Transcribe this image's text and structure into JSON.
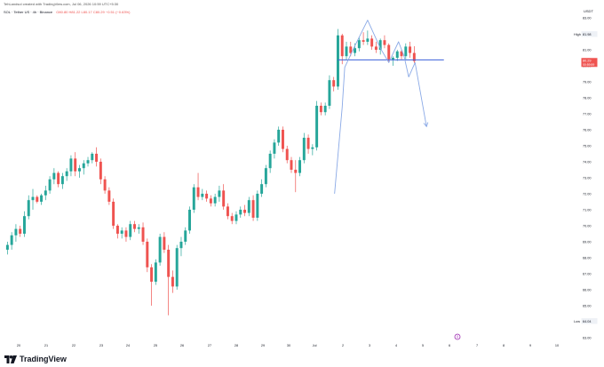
{
  "header": {
    "published_line": "TehLandsol created with TradingView.com, Jul 06, 2026 10:59 UTC+5:30",
    "symbol_line": "SOL · Tether US · 4h · Binance",
    "ohlc_line": "O80.80 H81.22 L80.17 C80.29 −0.51 (−0.63%)",
    "currency": "USDT"
  },
  "footer": {
    "brand": "TradingView"
  },
  "colors": {
    "up": "#26a69a",
    "down": "#ef5350",
    "pattern": "#8aa9e6",
    "neckline": "#3a5fd9",
    "axis_text": "#131722",
    "price_tag": "#ef5350"
  },
  "chart_data": {
    "type": "candlestick",
    "title": "",
    "xlabel": "",
    "ylabel": "",
    "ylim": [
      63,
      83
    ],
    "y_ticks": [
      "83.00",
      "82.00",
      "81.00",
      "80.00",
      "79.00",
      "78.00",
      "77.00",
      "76.00",
      "75.00",
      "74.00",
      "73.00",
      "72.00",
      "71.00",
      "70.00",
      "69.00",
      "68.00",
      "67.00",
      "66.00",
      "65.00",
      "64.00",
      "63.00"
    ],
    "x_ticks": [
      "20",
      "21",
      "22",
      "23",
      "24",
      "25",
      "26",
      "27",
      "28",
      "29",
      "30",
      "Jul",
      "2",
      "3",
      "4",
      "5",
      "6",
      "7",
      "8",
      "9",
      "10"
    ],
    "high_label": {
      "label": "High",
      "value": "81.98"
    },
    "low_label": {
      "label": "Low",
      "value": "64.04"
    },
    "last_price": {
      "value": "80.29",
      "countdown": "00:59:59"
    },
    "candles": [
      [
        68.5,
        69.0,
        68.2,
        68.8
      ],
      [
        68.8,
        69.6,
        68.5,
        69.4
      ],
      [
        69.4,
        70.1,
        69.0,
        69.8
      ],
      [
        69.8,
        70.0,
        69.3,
        69.5
      ],
      [
        69.5,
        70.9,
        69.3,
        70.6
      ],
      [
        70.6,
        71.9,
        70.4,
        71.6
      ],
      [
        71.6,
        72.3,
        71.0,
        71.8
      ],
      [
        71.8,
        71.9,
        71.4,
        71.5
      ],
      [
        71.5,
        72.0,
        71.3,
        71.9
      ],
      [
        71.9,
        72.5,
        71.6,
        72.2
      ],
      [
        72.2,
        73.1,
        72.0,
        72.9
      ],
      [
        72.9,
        73.6,
        72.6,
        73.3
      ],
      [
        73.3,
        73.4,
        72.4,
        72.6
      ],
      [
        72.6,
        73.3,
        72.3,
        73.1
      ],
      [
        73.1,
        73.6,
        72.8,
        73.4
      ],
      [
        73.4,
        74.4,
        73.1,
        74.2
      ],
      [
        74.2,
        74.6,
        73.1,
        73.4
      ],
      [
        73.4,
        73.8,
        73.0,
        73.6
      ],
      [
        73.6,
        74.1,
        73.2,
        73.9
      ],
      [
        73.9,
        74.3,
        73.7,
        74.1
      ],
      [
        74.1,
        74.6,
        73.9,
        74.5
      ],
      [
        74.5,
        74.9,
        73.7,
        74.0
      ],
      [
        74.0,
        74.2,
        72.6,
        72.9
      ],
      [
        72.9,
        73.1,
        72.0,
        72.2
      ],
      [
        72.2,
        72.4,
        71.3,
        71.5
      ],
      [
        71.5,
        71.7,
        69.8,
        70.0
      ],
      [
        70.0,
        70.1,
        69.2,
        69.5
      ],
      [
        69.5,
        69.9,
        69.2,
        69.7
      ],
      [
        69.7,
        69.9,
        69.0,
        69.3
      ],
      [
        69.3,
        70.3,
        69.1,
        70.1
      ],
      [
        70.1,
        70.3,
        69.6,
        69.8
      ],
      [
        69.8,
        70.1,
        69.5,
        69.9
      ],
      [
        69.9,
        70.2,
        68.8,
        69.0
      ],
      [
        69.0,
        69.2,
        67.1,
        67.4
      ],
      [
        67.4,
        67.6,
        65.0,
        66.5
      ],
      [
        66.5,
        67.9,
        66.3,
        67.7
      ],
      [
        67.7,
        69.5,
        67.5,
        69.3
      ],
      [
        69.3,
        69.6,
        68.3,
        68.5
      ],
      [
        68.5,
        68.8,
        64.4,
        66.8
      ],
      [
        66.8,
        67.2,
        65.8,
        66.2
      ],
      [
        66.2,
        68.8,
        66.0,
        68.6
      ],
      [
        68.6,
        69.3,
        68.1,
        69.0
      ],
      [
        69.0,
        69.9,
        68.8,
        69.7
      ],
      [
        69.7,
        71.2,
        69.5,
        71.0
      ],
      [
        71.0,
        72.6,
        70.8,
        72.4
      ],
      [
        72.4,
        73.3,
        71.6,
        71.8
      ],
      [
        71.8,
        72.3,
        71.6,
        72.0
      ],
      [
        72.0,
        72.2,
        71.5,
        71.7
      ],
      [
        71.7,
        71.9,
        71.2,
        71.4
      ],
      [
        71.4,
        72.0,
        71.2,
        71.8
      ],
      [
        71.8,
        72.5,
        71.5,
        72.2
      ],
      [
        72.2,
        72.6,
        71.0,
        71.2
      ],
      [
        71.2,
        71.4,
        70.4,
        70.6
      ],
      [
        70.6,
        70.8,
        70.1,
        70.3
      ],
      [
        70.3,
        70.9,
        70.1,
        70.7
      ],
      [
        70.7,
        71.2,
        70.5,
        71.0
      ],
      [
        71.0,
        71.3,
        70.6,
        70.8
      ],
      [
        70.8,
        71.8,
        70.6,
        71.6
      ],
      [
        71.6,
        71.9,
        70.3,
        70.5
      ],
      [
        70.5,
        72.2,
        70.3,
        72.0
      ],
      [
        72.0,
        72.9,
        71.8,
        72.6
      ],
      [
        72.6,
        73.8,
        72.4,
        73.6
      ],
      [
        73.6,
        74.7,
        73.3,
        74.5
      ],
      [
        74.5,
        75.4,
        74.2,
        75.2
      ],
      [
        75.2,
        76.2,
        75.0,
        76.0
      ],
      [
        76.0,
        76.2,
        74.6,
        74.8
      ],
      [
        74.8,
        75.0,
        73.9,
        74.1
      ],
      [
        74.1,
        74.3,
        73.3,
        73.5
      ],
      [
        73.5,
        74.1,
        72.1,
        73.3
      ],
      [
        73.3,
        74.3,
        73.1,
        74.1
      ],
      [
        74.1,
        75.8,
        73.9,
        75.5
      ],
      [
        75.5,
        75.7,
        74.5,
        74.8
      ],
      [
        74.8,
        75.1,
        74.4,
        74.9
      ],
      [
        74.9,
        77.8,
        74.7,
        77.5
      ],
      [
        77.5,
        77.7,
        76.9,
        77.1
      ],
      [
        77.1,
        77.7,
        76.9,
        77.5
      ],
      [
        77.5,
        79.4,
        77.3,
        79.1
      ],
      [
        79.1,
        79.3,
        78.4,
        78.7
      ],
      [
        78.7,
        82.3,
        78.5,
        81.9
      ],
      [
        81.9,
        82.0,
        80.1,
        80.6
      ],
      [
        80.6,
        81.5,
        80.4,
        81.2
      ],
      [
        81.2,
        81.5,
        80.6,
        80.8
      ],
      [
        80.8,
        81.4,
        80.6,
        81.1
      ],
      [
        81.1,
        81.8,
        80.9,
        81.6
      ],
      [
        81.6,
        82.1,
        81.3,
        81.5
      ],
      [
        81.5,
        82.2,
        81.3,
        81.7
      ],
      [
        81.7,
        81.9,
        81.0,
        81.2
      ],
      [
        81.2,
        81.5,
        80.8,
        81.0
      ],
      [
        81.0,
        81.7,
        80.7,
        81.6
      ],
      [
        81.6,
        81.9,
        81.1,
        81.3
      ],
      [
        81.3,
        81.4,
        80.2,
        80.4
      ],
      [
        80.4,
        80.6,
        80.0,
        80.5
      ],
      [
        80.5,
        81.0,
        80.3,
        80.9
      ],
      [
        80.9,
        81.0,
        80.4,
        80.6
      ],
      [
        80.6,
        81.4,
        80.4,
        81.2
      ],
      [
        81.2,
        81.5,
        80.5,
        80.8
      ],
      [
        80.8,
        81.22,
        80.17,
        80.29
      ]
    ],
    "annotations": {
      "neckline": {
        "from": [
          0.0,
          80.37
        ],
        "to": [
          1.0,
          80.37
        ]
      },
      "pattern_path": [
        [
          77.2,
          72.0
        ],
        [
          79.0,
          77.4
        ],
        [
          79.6,
          79.9
        ],
        [
          82.1,
          81.3
        ],
        [
          85.0,
          82.85
        ],
        [
          88.0,
          81.1
        ],
        [
          90.0,
          80.2
        ],
        [
          92.3,
          81.5
        ],
        [
          93.6,
          80.6
        ],
        [
          94.7,
          79.3
        ],
        [
          96.2,
          80.2
        ],
        [
          98.9,
          76.2
        ]
      ],
      "arrow_head_index": 11
    }
  }
}
